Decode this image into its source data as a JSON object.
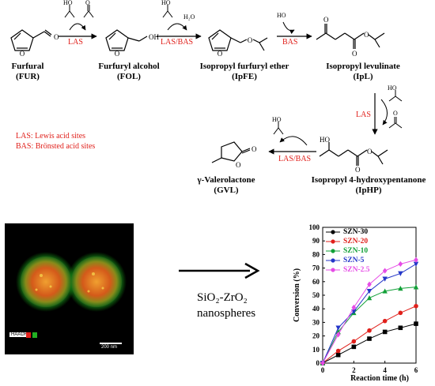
{
  "scheme": {
    "compounds": [
      {
        "name": "Furfural",
        "abbr": "(FUR)"
      },
      {
        "name": "Furfuryl alcohol",
        "abbr": "(FOL)"
      },
      {
        "name": "Isopropyl furfuryl ether",
        "abbr": "(IpFE)"
      },
      {
        "name": "Isopropyl levulinate",
        "abbr": "(IpL)"
      },
      {
        "name": "Isopropyl 4-hydroxypentanone",
        "abbr": "(IpHP)"
      },
      {
        "name": "γ-Valerolactone",
        "abbr": "(GVL)"
      }
    ],
    "catalysts": [
      "LAS",
      "LAS/BAS",
      "BAS",
      "LAS",
      "LAS/BAS"
    ],
    "small_labels": {
      "h2o": "H₂O",
      "ho": "HO",
      "oh": "OH",
      "o": "O"
    },
    "notes": [
      "LAS: Lewis acid sites",
      "BAS: Brönsted acid sites"
    ]
  },
  "micrograph": {
    "scale_bar": "200 nm",
    "badge": "HAADF"
  },
  "product": {
    "line1": "SiO₂-ZrO₂",
    "line2": "nanospheres"
  },
  "colors": {
    "catalyst_red": "#e0201b",
    "arrow": "#000000"
  },
  "chart_data": {
    "type": "line",
    "xlabel": "Reaction time (h)",
    "ylabel": "Conversion (%)",
    "xlim": [
      0,
      6
    ],
    "ylim": [
      0,
      100
    ],
    "xticks": [
      0,
      2,
      4,
      6
    ],
    "yticks": [
      0,
      10,
      20,
      30,
      40,
      50,
      60,
      70,
      80,
      90,
      100
    ],
    "legend_position": "top-left",
    "x": [
      0,
      1,
      2,
      3,
      4,
      5,
      6
    ],
    "series": [
      {
        "name": "SZN-30",
        "color": "#000000",
        "marker": "square",
        "values": [
          0,
          6,
          12,
          18,
          23,
          26,
          29
        ]
      },
      {
        "name": "SZN-20",
        "color": "#e0201b",
        "marker": "circle",
        "values": [
          0,
          9,
          16,
          24,
          31,
          37,
          42
        ]
      },
      {
        "name": "SZN-10",
        "color": "#11a037",
        "marker": "triangle-up",
        "values": [
          0,
          23,
          37,
          48,
          53,
          55,
          56
        ]
      },
      {
        "name": "SZN-5",
        "color": "#2436c8",
        "marker": "triangle-down",
        "values": [
          0,
          26,
          38,
          53,
          62,
          66,
          73
        ]
      },
      {
        "name": "SZN-2.5",
        "color": "#e64ce6",
        "marker": "diamond",
        "values": [
          0,
          21,
          41,
          58,
          68,
          73,
          76
        ]
      }
    ]
  }
}
